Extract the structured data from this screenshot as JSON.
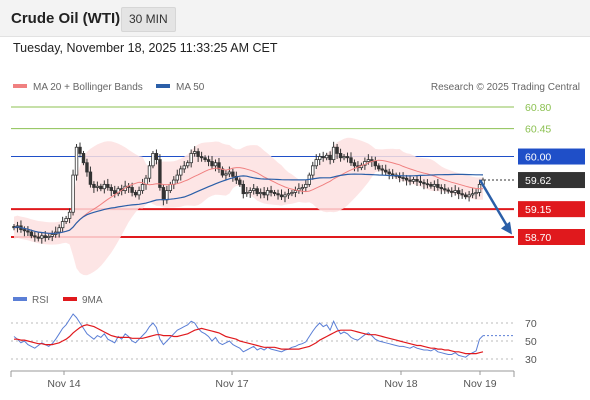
{
  "header": {
    "title": "Crude Oil (WTI)",
    "timeframe": "30 MIN"
  },
  "datetime": "Tuesday, November 18, 2025 11:33:25 AM CET",
  "colors": {
    "ma20": "#f08080",
    "ma50": "#2b5fa8",
    "bollinger_fill": "#fde0e0",
    "resistance": "#8cc152",
    "pivot": "#1f4fc8",
    "support": "#e0191d",
    "current_tag": "#333333",
    "rsi": "#5b7fd6",
    "rsi_ma": "#e0191d",
    "arrow": "#2b5fa8"
  },
  "chart_data": [
    {
      "type": "candlestick",
      "legend": [
        {
          "label": "MA 20 + Bollinger Bands",
          "color": "#f08080"
        },
        {
          "label": "MA 50",
          "color": "#2b5fa8"
        }
      ],
      "copyright": "Research © 2025 Trading Central",
      "x_ticks": [
        "Nov 14",
        "Nov 17",
        "Nov 18",
        "Nov 19"
      ],
      "levels": [
        {
          "value": 60.8,
          "label": "60.80",
          "kind": "resistance"
        },
        {
          "value": 60.45,
          "label": "60.45",
          "kind": "resistance"
        },
        {
          "value": 60.0,
          "label": "60.00",
          "kind": "pivot"
        },
        {
          "value": 59.62,
          "label": "59.62",
          "kind": "current"
        },
        {
          "value": 59.15,
          "label": "59.15",
          "kind": "support"
        },
        {
          "value": 58.7,
          "label": "58.70",
          "kind": "support"
        }
      ],
      "close": [
        58.85,
        58.88,
        58.82,
        58.8,
        58.78,
        58.72,
        58.7,
        58.68,
        58.72,
        58.69,
        58.71,
        58.74,
        58.78,
        58.85,
        58.95,
        59.0,
        59.1,
        59.7,
        60.15,
        60.05,
        59.9,
        59.75,
        59.55,
        59.5,
        59.52,
        59.48,
        59.55,
        59.5,
        59.45,
        59.4,
        59.48,
        59.45,
        59.52,
        59.5,
        59.42,
        59.38,
        59.45,
        59.55,
        59.65,
        59.85,
        60.05,
        59.95,
        59.5,
        59.3,
        59.45,
        59.55,
        59.62,
        59.7,
        59.8,
        59.85,
        59.9,
        60.05,
        60.08,
        60.0,
        59.98,
        59.95,
        59.92,
        59.85,
        59.9,
        59.8,
        59.7,
        59.72,
        59.75,
        59.68,
        59.62,
        59.55,
        59.4,
        59.42,
        59.45,
        59.48,
        59.4,
        59.42,
        59.38,
        59.45,
        59.42,
        59.4,
        59.38,
        59.35,
        59.38,
        59.4,
        59.42,
        59.45,
        59.48,
        59.5,
        59.55,
        59.7,
        59.85,
        59.95,
        60.0,
        59.98,
        60.02,
        59.95,
        60.15,
        60.05,
        59.98,
        60.0,
        59.98,
        59.9,
        59.85,
        59.82,
        59.86,
        59.92,
        59.95,
        59.92,
        59.85,
        59.8,
        59.78,
        59.75,
        59.72,
        59.7,
        59.68,
        59.66,
        59.65,
        59.62,
        59.6,
        59.63,
        59.6,
        59.58,
        59.56,
        59.55,
        59.52,
        59.55,
        59.5,
        59.48,
        59.46,
        59.44,
        59.42,
        59.45,
        59.4,
        59.38,
        59.35,
        59.38,
        59.4,
        59.42,
        59.55,
        59.62
      ]
    },
    {
      "type": "line",
      "legend": [
        {
          "label": "RSI",
          "color": "#5b7fd6"
        },
        {
          "label": "9MA",
          "color": "#e0191d"
        }
      ],
      "y_ticks": [
        70,
        50,
        30
      ],
      "series": [
        {
          "name": "RSI",
          "values": [
            55,
            52,
            48,
            50,
            46,
            44,
            42,
            45,
            48,
            46,
            44,
            47,
            52,
            58,
            64,
            68,
            74,
            80,
            76,
            70,
            64,
            58,
            55,
            52,
            56,
            54,
            58,
            52,
            50,
            48,
            55,
            52,
            58,
            55,
            50,
            48,
            52,
            56,
            60,
            66,
            70,
            65,
            52,
            46,
            50,
            54,
            58,
            62,
            64,
            66,
            68,
            72,
            70,
            64,
            60,
            58,
            55,
            50,
            54,
            48,
            46,
            48,
            50,
            46,
            44,
            42,
            38,
            40,
            42,
            44,
            40,
            42,
            40,
            43,
            41,
            40,
            39,
            38,
            40,
            41,
            43,
            44,
            46,
            47,
            49,
            55,
            61,
            66,
            70,
            66,
            68,
            62,
            72,
            64,
            58,
            60,
            58,
            54,
            52,
            51,
            54,
            57,
            59,
            56,
            52,
            50,
            49,
            48,
            47,
            46,
            45,
            44,
            44,
            43,
            42,
            44,
            42,
            41,
            40,
            40,
            39,
            41,
            38,
            37,
            36,
            35,
            35,
            37,
            34,
            33,
            32,
            35,
            37,
            39,
            52,
            56
          ]
        },
        {
          "name": "9MA",
          "values": [
            52,
            52,
            51,
            51,
            50,
            49,
            48,
            47,
            47,
            46,
            46,
            46,
            47,
            48,
            50,
            52,
            55,
            59,
            62,
            65,
            67,
            68,
            67,
            66,
            64,
            62,
            60,
            58,
            56,
            55,
            54,
            54,
            54,
            54,
            53,
            53,
            53,
            53,
            54,
            55,
            56,
            57,
            57,
            56,
            56,
            56,
            55,
            55,
            56,
            57,
            58,
            60,
            62,
            63,
            64,
            63,
            62,
            61,
            60,
            59,
            57,
            55,
            54,
            53,
            52,
            50,
            49,
            48,
            47,
            46,
            45,
            44,
            43,
            43,
            43,
            43,
            42,
            41,
            41,
            41,
            41,
            41,
            41,
            42,
            43,
            44,
            46,
            48,
            51,
            53,
            55,
            57,
            59,
            61,
            62,
            62,
            62,
            62,
            61,
            60,
            59,
            58,
            57,
            57,
            57,
            56,
            55,
            54,
            53,
            52,
            51,
            50,
            49,
            48,
            47,
            46,
            45,
            45,
            44,
            43,
            42,
            42,
            41,
            41,
            40,
            40,
            39,
            38,
            38,
            37,
            36,
            36,
            36,
            36,
            37,
            38
          ]
        }
      ]
    }
  ]
}
